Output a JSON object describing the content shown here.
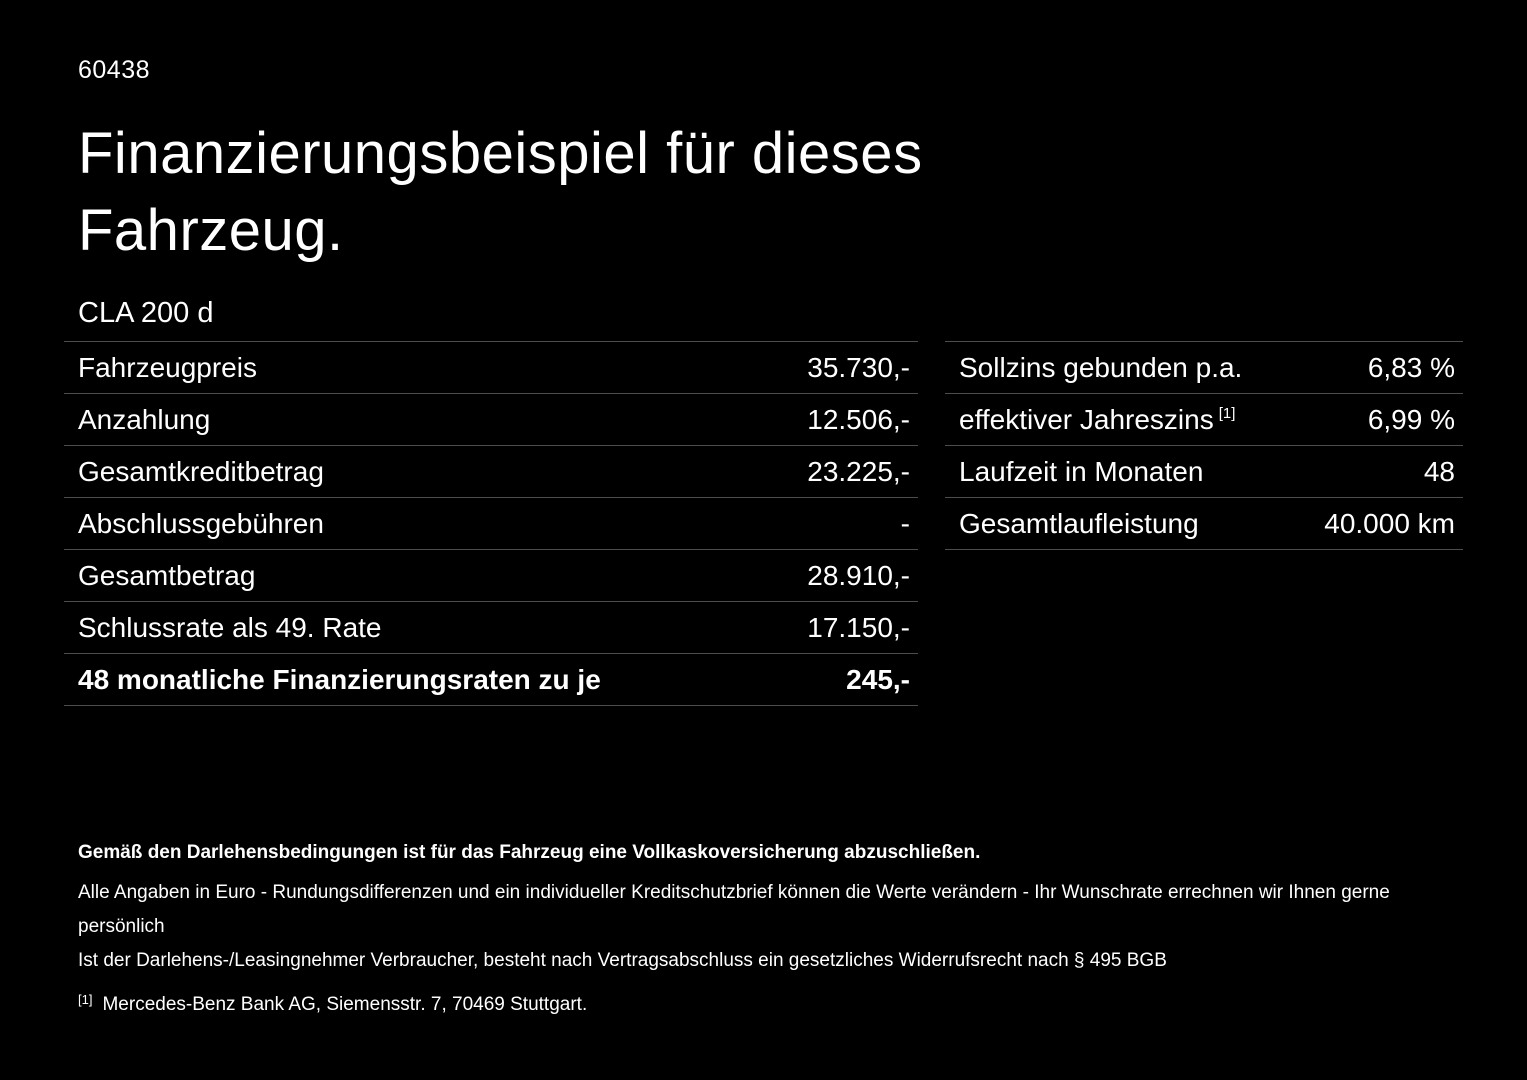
{
  "header": {
    "doc_id": "60438",
    "title_line1": "Finanzierungsbeispiel für dieses",
    "title_line2": "Fahrzeug.",
    "model": "CLA 200 d"
  },
  "tables": {
    "financing": {
      "rows": [
        {
          "label": "Fahrzeugpreis",
          "value": "35.730,-"
        },
        {
          "label": "Anzahlung",
          "value": "12.506,-"
        },
        {
          "label": "Gesamtkreditbetrag",
          "value": "23.225,-"
        },
        {
          "label": "Abschlussgebühren",
          "value": "-"
        },
        {
          "label": "Gesamtbetrag",
          "value": "28.910,-"
        },
        {
          "label": "Schlussrate als 49. Rate",
          "value": "17.150,-"
        },
        {
          "label": "48 monatliche Finanzierungsraten zu je",
          "value": "245,-"
        }
      ]
    },
    "conditions": {
      "rows": [
        {
          "label": "Sollzins gebunden p.a.",
          "ref": "",
          "value": "6,83 %"
        },
        {
          "label": "effektiver Jahreszins",
          "ref": "[1]",
          "value": "6,99 %"
        },
        {
          "label": "Laufzeit in Monaten",
          "ref": "",
          "value": "48"
        },
        {
          "label": "Gesamtlaufleistung",
          "ref": "",
          "value": "40.000 km"
        }
      ]
    }
  },
  "footnotes": {
    "insurance_note": "Gemäß den Darlehensbedingungen ist für das Fahrzeug eine Vollkaskoversicherung abzuschließen.",
    "euro_note": "Alle Angaben in Euro - Rundungsdifferenzen und ein individueller Kreditschutzbrief können die Werte verändern - Ihr Wunschrate errechnen wir Ihnen gerne persönlich",
    "withdrawal_note": "Ist der Darlehens-/Leasingnehmer Verbraucher, besteht nach Vertragsabschluss ein gesetzliches Widerrufsrecht nach § 495 BGB",
    "ref1_marker": "[1]",
    "ref1_text": "Mercedes-Benz Bank AG, Siemensstr. 7, 70469 Stuttgart."
  },
  "colors": {
    "background": "#000000",
    "text": "#ffffff",
    "divider": "#4d4d4d"
  }
}
